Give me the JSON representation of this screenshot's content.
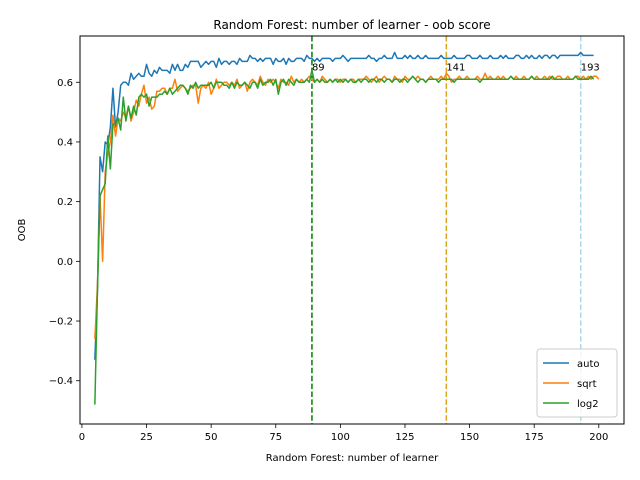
{
  "chart_data": {
    "type": "line",
    "title": "Random Forest: number of learner - oob score",
    "xlabel": "Random Forest: number of learner",
    "ylabel": "OOB",
    "xlim": [
      -0.75,
      209.75
    ],
    "ylim": [
      -0.545,
      0.755
    ],
    "xticks": [
      0,
      25,
      50,
      75,
      100,
      125,
      150,
      175,
      200
    ],
    "yticks": [
      -0.4,
      -0.2,
      0.0,
      0.2,
      0.4,
      0.6
    ],
    "grid": false,
    "legend_position": "lower-right",
    "x_start": 5,
    "x_step": 1,
    "series": [
      {
        "name": "auto",
        "color": "#1f77b4",
        "values": [
          -0.33,
          -0.1,
          0.35,
          0.3,
          0.4,
          0.39,
          0.45,
          0.58,
          0.45,
          0.5,
          0.59,
          0.6,
          0.6,
          0.59,
          0.63,
          0.61,
          0.62,
          0.63,
          0.62,
          0.62,
          0.66,
          0.63,
          0.62,
          0.64,
          0.63,
          0.65,
          0.64,
          0.64,
          0.64,
          0.63,
          0.66,
          0.64,
          0.66,
          0.64,
          0.64,
          0.66,
          0.65,
          0.67,
          0.67,
          0.67,
          0.67,
          0.65,
          0.66,
          0.67,
          0.66,
          0.67,
          0.67,
          0.65,
          0.68,
          0.66,
          0.67,
          0.67,
          0.66,
          0.67,
          0.67,
          0.66,
          0.68,
          0.67,
          0.67,
          0.67,
          0.69,
          0.68,
          0.68,
          0.67,
          0.68,
          0.67,
          0.68,
          0.68,
          0.68,
          0.66,
          0.68,
          0.67,
          0.67,
          0.68,
          0.66,
          0.68,
          0.67,
          0.67,
          0.68,
          0.68,
          0.68,
          0.67,
          0.69,
          0.68,
          0.68,
          0.67,
          0.68,
          0.67,
          0.68,
          0.68,
          0.68,
          0.68,
          0.67,
          0.68,
          0.68,
          0.68,
          0.69,
          0.68,
          0.67,
          0.68,
          0.68,
          0.68,
          0.68,
          0.68,
          0.68,
          0.68,
          0.69,
          0.68,
          0.68,
          0.67,
          0.68,
          0.68,
          0.69,
          0.68,
          0.68,
          0.68,
          0.7,
          0.68,
          0.68,
          0.68,
          0.69,
          0.68,
          0.69,
          0.68,
          0.68,
          0.69,
          0.68,
          0.68,
          0.69,
          0.68,
          0.68,
          0.68,
          0.68,
          0.68,
          0.69,
          0.68,
          0.68,
          0.68,
          0.68,
          0.69,
          0.68,
          0.68,
          0.68,
          0.68,
          0.69,
          0.69,
          0.68,
          0.68,
          0.68,
          0.69,
          0.68,
          0.68,
          0.68,
          0.69,
          0.68,
          0.68,
          0.68,
          0.69,
          0.68,
          0.69,
          0.68,
          0.68,
          0.68,
          0.69,
          0.69,
          0.68,
          0.68,
          0.69,
          0.68,
          0.69,
          0.68,
          0.68,
          0.69,
          0.68,
          0.69,
          0.69,
          0.68,
          0.69,
          0.69,
          0.68,
          0.69,
          0.69,
          0.69,
          0.69,
          0.69,
          0.69,
          0.69,
          0.69,
          0.7,
          0.69,
          0.69,
          0.69,
          0.69,
          0.69
        ]
      },
      {
        "name": "sqrt",
        "color": "#ff7f0e",
        "values": [
          -0.26,
          -0.08,
          0.22,
          0.0,
          0.3,
          0.36,
          0.4,
          0.49,
          0.42,
          0.48,
          0.47,
          0.5,
          0.48,
          0.52,
          0.47,
          0.5,
          0.54,
          0.52,
          0.56,
          0.59,
          0.53,
          0.55,
          0.51,
          0.52,
          0.57,
          0.57,
          0.58,
          0.58,
          0.56,
          0.58,
          0.58,
          0.61,
          0.57,
          0.58,
          0.59,
          0.58,
          0.57,
          0.58,
          0.59,
          0.59,
          0.53,
          0.58,
          0.59,
          0.58,
          0.6,
          0.56,
          0.58,
          0.61,
          0.58,
          0.59,
          0.6,
          0.6,
          0.59,
          0.6,
          0.59,
          0.61,
          0.58,
          0.59,
          0.6,
          0.57,
          0.6,
          0.61,
          0.6,
          0.59,
          0.62,
          0.6,
          0.59,
          0.61,
          0.6,
          0.61,
          0.6,
          0.58,
          0.61,
          0.6,
          0.6,
          0.59,
          0.62,
          0.6,
          0.61,
          0.6,
          0.61,
          0.6,
          0.61,
          0.62,
          0.61,
          0.6,
          0.61,
          0.6,
          0.62,
          0.61,
          0.6,
          0.61,
          0.6,
          0.61,
          0.61,
          0.6,
          0.61,
          0.61,
          0.6,
          0.61,
          0.61,
          0.6,
          0.61,
          0.61,
          0.61,
          0.62,
          0.61,
          0.6,
          0.61,
          0.62,
          0.6,
          0.61,
          0.62,
          0.61,
          0.61,
          0.6,
          0.62,
          0.61,
          0.61,
          0.6,
          0.62,
          0.61,
          0.61,
          0.62,
          0.61,
          0.62,
          0.61,
          0.61,
          0.6,
          0.61,
          0.62,
          0.61,
          0.61,
          0.61,
          0.62,
          0.61,
          0.63,
          0.62,
          0.6,
          0.61,
          0.61,
          0.62,
          0.61,
          0.61,
          0.62,
          0.61,
          0.61,
          0.61,
          0.62,
          0.61,
          0.61,
          0.63,
          0.61,
          0.62,
          0.61,
          0.61,
          0.62,
          0.61,
          0.62,
          0.61,
          0.61,
          0.62,
          0.61,
          0.62,
          0.61,
          0.61,
          0.62,
          0.61,
          0.61,
          0.62,
          0.61,
          0.62,
          0.61,
          0.61,
          0.62,
          0.61,
          0.62,
          0.61,
          0.61,
          0.62,
          0.62,
          0.61,
          0.61,
          0.62,
          0.61,
          0.61,
          0.62,
          0.62,
          0.61,
          0.62,
          0.61,
          0.62,
          0.61,
          0.62,
          0.62,
          0.61
        ]
      },
      {
        "name": "log2",
        "color": "#2ca02c",
        "values": [
          -0.48,
          -0.1,
          0.22,
          0.24,
          0.26,
          0.42,
          0.31,
          0.46,
          0.46,
          0.48,
          0.44,
          0.55,
          0.47,
          0.52,
          0.48,
          0.52,
          0.49,
          0.55,
          0.56,
          0.55,
          0.56,
          0.52,
          0.55,
          0.55,
          0.55,
          0.56,
          0.56,
          0.57,
          0.56,
          0.58,
          0.56,
          0.57,
          0.58,
          0.59,
          0.59,
          0.58,
          0.56,
          0.59,
          0.58,
          0.6,
          0.58,
          0.59,
          0.59,
          0.59,
          0.59,
          0.6,
          0.58,
          0.6,
          0.6,
          0.6,
          0.59,
          0.59,
          0.58,
          0.6,
          0.58,
          0.6,
          0.59,
          0.59,
          0.6,
          0.59,
          0.58,
          0.6,
          0.6,
          0.58,
          0.61,
          0.59,
          0.6,
          0.6,
          0.61,
          0.59,
          0.61,
          0.56,
          0.6,
          0.61,
          0.59,
          0.61,
          0.6,
          0.59,
          0.61,
          0.6,
          0.6,
          0.6,
          0.61,
          0.6,
          0.64,
          0.6,
          0.61,
          0.6,
          0.61,
          0.6,
          0.6,
          0.61,
          0.6,
          0.61,
          0.6,
          0.61,
          0.6,
          0.61,
          0.6,
          0.61,
          0.6,
          0.6,
          0.61,
          0.6,
          0.61,
          0.61,
          0.6,
          0.61,
          0.61,
          0.6,
          0.61,
          0.61,
          0.6,
          0.61,
          0.61,
          0.6,
          0.61,
          0.61,
          0.6,
          0.61,
          0.61,
          0.6,
          0.61,
          0.62,
          0.61,
          0.6,
          0.61,
          0.61,
          0.6,
          0.61,
          0.61,
          0.61,
          0.61,
          0.6,
          0.61,
          0.61,
          0.61,
          0.61,
          0.61,
          0.6,
          0.61,
          0.61,
          0.61,
          0.61,
          0.61,
          0.61,
          0.61,
          0.61,
          0.61,
          0.6,
          0.61,
          0.61,
          0.61,
          0.61,
          0.61,
          0.61,
          0.61,
          0.61,
          0.61,
          0.61,
          0.61,
          0.62,
          0.61,
          0.61,
          0.61,
          0.61,
          0.61,
          0.61,
          0.61,
          0.62,
          0.61,
          0.61,
          0.61,
          0.61,
          0.61,
          0.61,
          0.61,
          0.62,
          0.61,
          0.61,
          0.61,
          0.61,
          0.61,
          0.61,
          0.61,
          0.61,
          0.62,
          0.61,
          0.61,
          0.61,
          0.61,
          0.61,
          0.62,
          0.61
        ]
      }
    ],
    "vlines": [
      {
        "x": 89,
        "label": "89",
        "color": "#008000"
      },
      {
        "x": 141,
        "label": "141",
        "color": "#daa520"
      },
      {
        "x": 193,
        "label": "193",
        "color": "#add8e6"
      }
    ]
  }
}
